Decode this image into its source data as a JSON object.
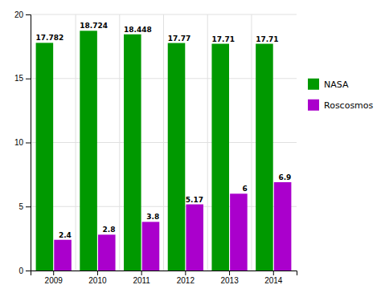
{
  "chart_data": {
    "type": "bar",
    "categories": [
      "2009",
      "2010",
      "2011",
      "2012",
      "2013",
      "2014"
    ],
    "series": [
      {
        "name": "NASA",
        "color": "#009900",
        "values": [
          17.782,
          18.724,
          18.448,
          17.77,
          17.71,
          17.71
        ]
      },
      {
        "name": "Roscosmos",
        "color": "#aa00cc",
        "values": [
          2.4,
          2.8,
          3.8,
          5.17,
          6,
          6.9
        ]
      }
    ],
    "ylim": [
      0,
      20
    ],
    "yticks": [
      0,
      5,
      10,
      15,
      20
    ],
    "grid": true,
    "legend": "right",
    "data_labels": true
  }
}
